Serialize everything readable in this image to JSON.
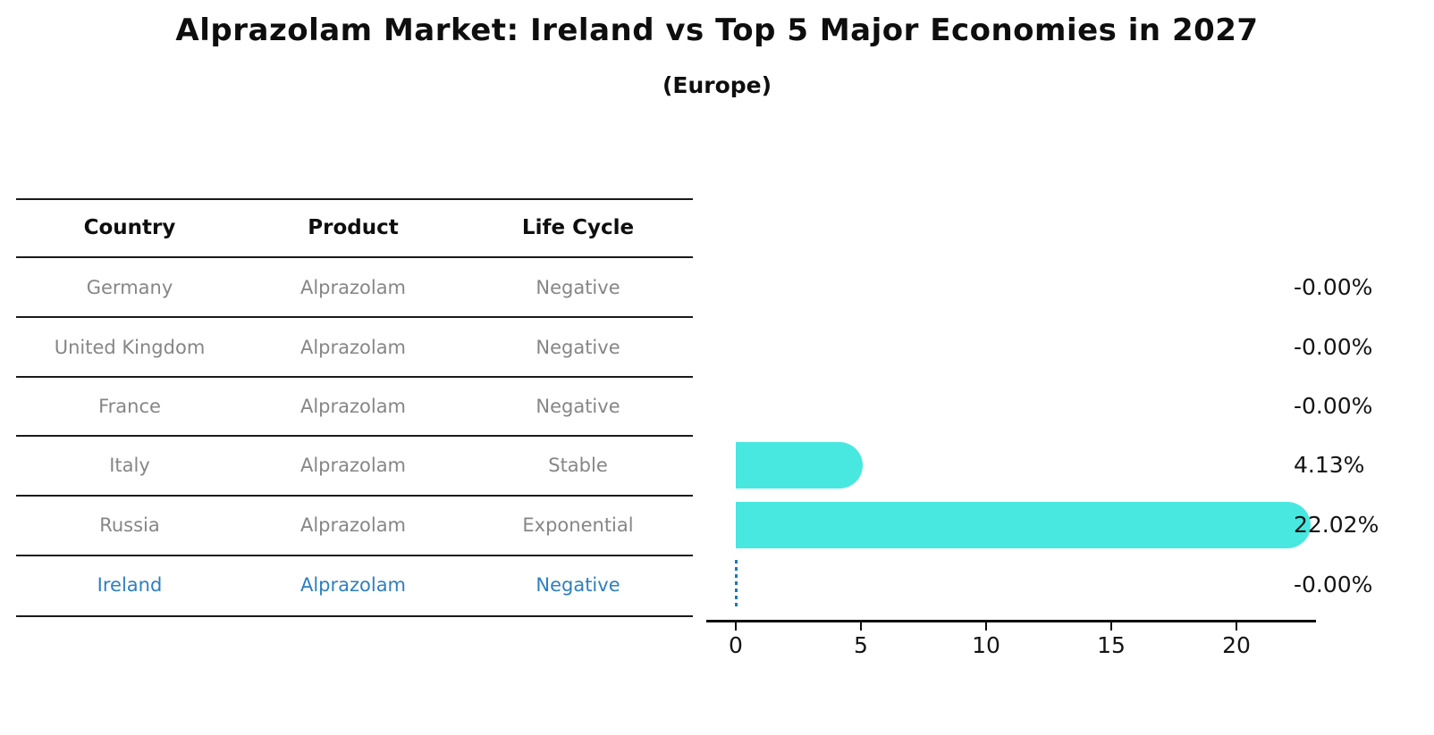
{
  "title": "Alprazolam Market: Ireland vs Top 5 Major Economies in 2027",
  "subtitle": "(Europe)",
  "table": {
    "headers": [
      "Country",
      "Product",
      "Life Cycle"
    ],
    "rows": [
      {
        "country": "Germany",
        "product": "Alprazolam",
        "life_cycle": "Negative",
        "highlight": false
      },
      {
        "country": "United Kingdom",
        "product": "Alprazolam",
        "life_cycle": "Negative",
        "highlight": false
      },
      {
        "country": "France",
        "product": "Alprazolam",
        "life_cycle": "Negative",
        "highlight": false
      },
      {
        "country": "Italy",
        "product": "Alprazolam",
        "life_cycle": "Stable",
        "highlight": false
      },
      {
        "country": "Russia",
        "product": "Alprazolam",
        "life_cycle": "Exponential",
        "highlight": false
      },
      {
        "country": "Ireland",
        "product": "Alprazolam",
        "life_cycle": "Negative",
        "highlight": true
      }
    ]
  },
  "chart_data": {
    "type": "bar",
    "orientation": "horizontal",
    "title": "Alprazolam Market: Ireland vs Top 5 Major Economies in 2027",
    "subtitle": "(Europe)",
    "categories": [
      "Germany",
      "United Kingdom",
      "France",
      "Italy",
      "Russia",
      "Ireland"
    ],
    "values": [
      -0.0,
      -0.0,
      -0.0,
      4.13,
      22.02,
      -0.0
    ],
    "value_labels": [
      "-0.00%",
      "-0.00%",
      "-0.00%",
      "4.13%",
      "22.02%",
      "-0.00%"
    ],
    "xlabel": "",
    "ylabel": "",
    "xticks": [
      0,
      5,
      10,
      15,
      20
    ],
    "xlim": [
      -1.1,
      23.12
    ],
    "grid": false,
    "legend_position": "none",
    "bar_color": "#48E8E0",
    "highlight_index": 5,
    "highlight_marker": "dotted-zero-line",
    "highlight_color": "#1f77b4",
    "highlight_text_color": "#2d7fc1"
  }
}
